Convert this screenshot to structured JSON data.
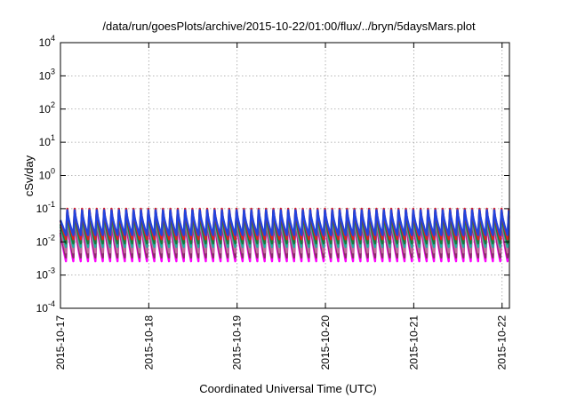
{
  "chart_data": {
    "type": "line",
    "title": "/data/run/goesPlots/archive/2015-10-22/01:00/flux/../bryn/5daysMars.plot",
    "xlabel": "Coordinated Universal Time (UTC)",
    "ylabel": "cSv/day",
    "y_scale": "log",
    "ylim": [
      0.0001,
      10000
    ],
    "xlim": [
      "2015-10-17T00:00",
      "2015-10-22T02:00"
    ],
    "grid": true,
    "y_ticks": [
      {
        "base": "10",
        "exp": "-4",
        "value": 0.0001
      },
      {
        "base": "10",
        "exp": "-3",
        "value": 0.001
      },
      {
        "base": "10",
        "exp": "-2",
        "value": 0.01
      },
      {
        "base": "10",
        "exp": "-1",
        "value": 0.1
      },
      {
        "base": "10",
        "exp": "0",
        "value": 1
      },
      {
        "base": "10",
        "exp": "1",
        "value": 10
      },
      {
        "base": "10",
        "exp": "2",
        "value": 100
      },
      {
        "base": "10",
        "exp": "3",
        "value": 1000
      },
      {
        "base": "10",
        "exp": "4",
        "value": 10000
      }
    ],
    "x_ticks": [
      "2015-10-17",
      "2015-10-18",
      "2015-10-19",
      "2015-10-20",
      "2015-10-21",
      "2015-10-22"
    ],
    "cycle_hours": 2,
    "series": [
      {
        "color": "#ff00ff",
        "peak": 0.055,
        "trough": 0.0026
      },
      {
        "color": "#8b2c6a",
        "peak": 0.06,
        "trough": 0.0034
      },
      {
        "color": "#c06a9a",
        "peak": 0.065,
        "trough": 0.0048
      },
      {
        "color": "#20b0a0",
        "peak": 0.075,
        "trough": 0.007
      },
      {
        "color": "#1a7a3a",
        "peak": 0.082,
        "trough": 0.009
      },
      {
        "color": "#e02020",
        "peak": 0.1,
        "trough": 0.012
      },
      {
        "color": "#2244dd",
        "peak": 0.09,
        "trough": 0.016
      }
    ]
  }
}
